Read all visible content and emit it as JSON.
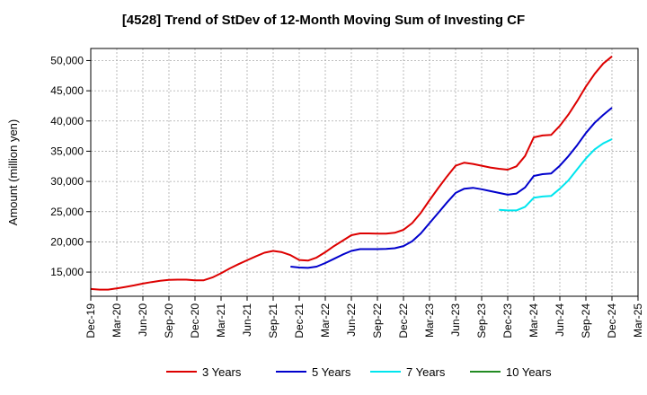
{
  "chart_data": {
    "type": "line",
    "title": "[4528]  Trend of StDev of 12-Month Moving Sum of Investing CF",
    "ylabel": "Amount (million yen)",
    "xlabel": "",
    "ylim": [
      11000,
      52000
    ],
    "yticks": [
      15000,
      20000,
      25000,
      30000,
      35000,
      40000,
      45000,
      50000
    ],
    "ytick_labels": [
      "15,000",
      "20,000",
      "25,000",
      "30,000",
      "35,000",
      "40,000",
      "45,000",
      "50,000"
    ],
    "xlim": [
      "2019-12",
      "2025-03"
    ],
    "xticks": [
      "2019-12",
      "2020-03",
      "2020-06",
      "2020-09",
      "2020-12",
      "2021-03",
      "2021-06",
      "2021-09",
      "2021-12",
      "2022-03",
      "2022-06",
      "2022-09",
      "2022-12",
      "2023-03",
      "2023-06",
      "2023-09",
      "2023-12",
      "2024-03",
      "2024-06",
      "2024-09",
      "2024-12",
      "2025-03"
    ],
    "xtick_labels": [
      "Dec-19",
      "Mar-20",
      "Jun-20",
      "Sep-20",
      "Dec-20",
      "Mar-21",
      "Jun-21",
      "Sep-21",
      "Dec-21",
      "Mar-22",
      "Jun-22",
      "Sep-22",
      "Dec-22",
      "Mar-23",
      "Jun-23",
      "Sep-23",
      "Dec-23",
      "Mar-24",
      "Jun-24",
      "Sep-24",
      "Dec-24",
      "Mar-25"
    ],
    "grid": true,
    "legend_position": "bottom",
    "series": [
      {
        "name": "3 Years",
        "color": "#dd0000",
        "x": [
          "2019-12",
          "2020-01",
          "2020-02",
          "2020-03",
          "2020-04",
          "2020-05",
          "2020-06",
          "2020-07",
          "2020-08",
          "2020-09",
          "2020-10",
          "2020-11",
          "2020-12",
          "2021-01",
          "2021-02",
          "2021-03",
          "2021-04",
          "2021-05",
          "2021-06",
          "2021-07",
          "2021-08",
          "2021-09",
          "2021-10",
          "2021-11",
          "2021-12",
          "2022-01",
          "2022-02",
          "2022-03",
          "2022-04",
          "2022-05",
          "2022-06",
          "2022-07",
          "2022-08",
          "2022-09",
          "2022-10",
          "2022-11",
          "2022-12",
          "2023-01",
          "2023-02",
          "2023-03",
          "2023-04",
          "2023-05",
          "2023-06",
          "2023-07",
          "2023-08",
          "2023-09",
          "2023-10",
          "2023-11",
          "2023-12",
          "2024-01",
          "2024-02",
          "2024-03",
          "2024-04",
          "2024-05",
          "2024-06",
          "2024-07",
          "2024-08",
          "2024-09",
          "2024-10",
          "2024-11",
          "2024-12"
        ],
        "values": [
          12200,
          12100,
          12100,
          12300,
          12550,
          12800,
          13100,
          13350,
          13550,
          13700,
          13750,
          13750,
          13650,
          13650,
          14100,
          14800,
          15600,
          16300,
          16950,
          17600,
          18200,
          18500,
          18300,
          17800,
          17000,
          16900,
          17400,
          18300,
          19300,
          20200,
          21100,
          21400,
          21400,
          21350,
          21350,
          21500,
          22000,
          23100,
          24800,
          26900,
          28900,
          30800,
          32600,
          33100,
          32900,
          32600,
          32300,
          32100,
          31950,
          32500,
          34200,
          37300,
          37600,
          37700,
          39200,
          41100,
          43300,
          45700,
          47800,
          49500,
          50700
        ]
      },
      {
        "name": "5 Years",
        "color": "#0000cc",
        "x": [
          "2021-11",
          "2021-12",
          "2022-01",
          "2022-02",
          "2022-03",
          "2022-04",
          "2022-05",
          "2022-06",
          "2022-07",
          "2022-08",
          "2022-09",
          "2022-10",
          "2022-11",
          "2022-12",
          "2023-01",
          "2023-02",
          "2023-03",
          "2023-04",
          "2023-05",
          "2023-06",
          "2023-07",
          "2023-08",
          "2023-09",
          "2023-10",
          "2023-11",
          "2023-12",
          "2024-01",
          "2024-02",
          "2024-03",
          "2024-04",
          "2024-05",
          "2024-06",
          "2024-07",
          "2024-08",
          "2024-09",
          "2024-10",
          "2024-11",
          "2024-12"
        ],
        "values": [
          15900,
          15750,
          15700,
          15900,
          16500,
          17200,
          17900,
          18500,
          18800,
          18800,
          18800,
          18850,
          18950,
          19300,
          20100,
          21400,
          23100,
          24800,
          26500,
          28100,
          28800,
          28950,
          28700,
          28400,
          28100,
          27800,
          28000,
          29000,
          30900,
          31200,
          31300,
          32600,
          34200,
          36000,
          38000,
          39700,
          41000,
          42200
        ]
      },
      {
        "name": "7 Years",
        "color": "#00e5ee",
        "x": [
          "2023-11",
          "2023-12",
          "2024-01",
          "2024-02",
          "2024-03",
          "2024-04",
          "2024-05",
          "2024-06",
          "2024-07",
          "2024-08",
          "2024-09",
          "2024-10",
          "2024-11",
          "2024-12"
        ],
        "values": [
          25300,
          25200,
          25200,
          25800,
          27300,
          27500,
          27600,
          28800,
          30200,
          32000,
          33800,
          35300,
          36300,
          37000
        ]
      },
      {
        "name": "10 Years",
        "color": "#228b22",
        "x": [],
        "values": []
      }
    ]
  }
}
